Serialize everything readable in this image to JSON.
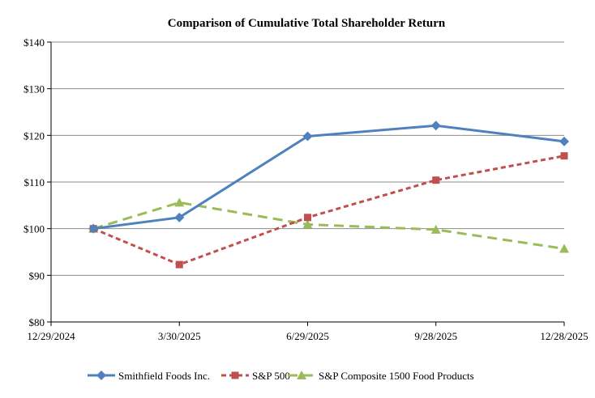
{
  "chart_data": {
    "type": "line",
    "title": "Comparison of Cumulative Total Shareholder Return",
    "xlabel": "",
    "ylabel": "",
    "x_tick_labels": [
      "12/29/2024",
      "3/30/2025",
      "6/29/2025",
      "9/28/2025",
      "12/28/2025"
    ],
    "x_ticks": [
      "2024-12-29",
      "2025-03-30",
      "2025-06-29",
      "2025-09-28",
      "2025-12-28"
    ],
    "xlim": [
      "2024-12-29",
      "2025-12-28"
    ],
    "y_tick_labels": [
      "$80",
      "$90",
      "$100",
      "$110",
      "$120",
      "$130",
      "$140"
    ],
    "y_ticks": [
      80,
      90,
      100,
      110,
      120,
      130,
      140
    ],
    "ylim": [
      80,
      140
    ],
    "grid": "horizontal",
    "legend_position": "bottom",
    "x": [
      "2025-01-28",
      "2025-03-30",
      "2025-06-29",
      "2025-09-28",
      "2025-12-28"
    ],
    "series": [
      {
        "name": "Smithfield Foods Inc.",
        "values": [
          100,
          102.4,
          119.8,
          122.1,
          118.7
        ],
        "color": "#4F81BD",
        "marker": "diamond",
        "dash": "solid"
      },
      {
        "name": "S&P 500",
        "values": [
          100,
          92.3,
          102.4,
          110.4,
          115.6
        ],
        "color": "#C0504D",
        "marker": "square",
        "dash": "dotted"
      },
      {
        "name": "S&P Composite 1500 Food Products",
        "values": [
          100,
          105.6,
          100.9,
          99.8,
          95.7
        ],
        "color": "#9BBB59",
        "marker": "triangle",
        "dash": "dashed"
      }
    ]
  }
}
